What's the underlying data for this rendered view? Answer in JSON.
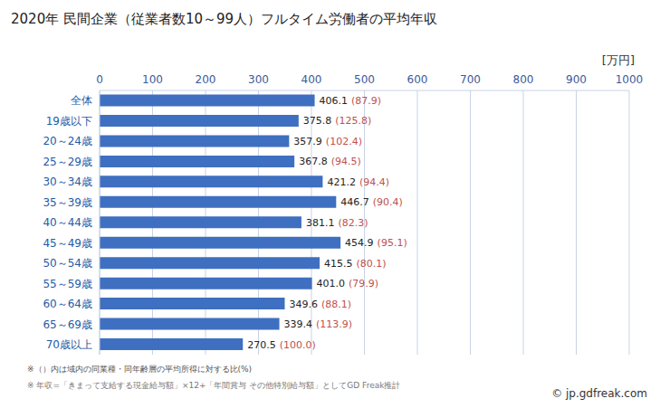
{
  "chart_data": {
    "type": "bar",
    "orientation": "horizontal",
    "title": "2020年 民間企業（従業者数10～99人）フルタイム労働者の平均年収",
    "x_label": "[万円]",
    "categories": [
      "全体",
      "19歳以下",
      "20～24歳",
      "25～29歳",
      "30～34歳",
      "35～39歳",
      "40～44歳",
      "45～49歳",
      "50～54歳",
      "55～59歳",
      "60～64歳",
      "65～69歳",
      "70歳以上"
    ],
    "values": [
      406.1,
      375.8,
      357.9,
      367.8,
      421.2,
      446.7,
      381.1,
      454.9,
      415.5,
      401.0,
      349.6,
      339.4,
      270.5
    ],
    "value_labels": [
      "406.1",
      "375.8",
      "357.9",
      "367.8",
      "421.2",
      "446.7",
      "381.1",
      "454.9",
      "415.5",
      "401.0",
      "349.6",
      "339.4",
      "270.5"
    ],
    "ratio_labels": [
      "(87.9)",
      "(125.8)",
      "(102.4)",
      "(94.5)",
      "(94.4)",
      "(90.4)",
      "(82.3)",
      "(95.1)",
      "(80.1)",
      "(79.9)",
      "(88.1)",
      "(113.9)",
      "(100.0)"
    ],
    "color": "#3f6fc0",
    "xlim": [
      0,
      1000
    ],
    "xticks": [
      0,
      100,
      200,
      300,
      400,
      500,
      600,
      700,
      800,
      900,
      1000
    ],
    "grid": true,
    "data_labels": true,
    "annotations": [
      "※（）内は域内の同業種・同年齢層の平均所得に対する比(%)",
      "※ 年収=「きまって支給する現金給与額」×12+「年間賞与 その他特別給与額」としてGD Freak推計",
      "© jp.gdfreak.com"
    ]
  }
}
